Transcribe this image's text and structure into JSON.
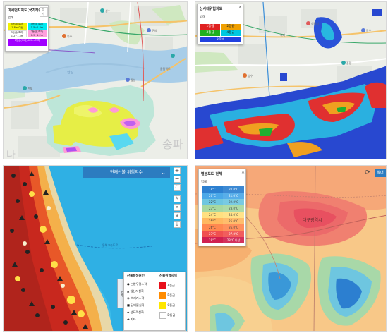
{
  "p1": {
    "title": "미세먼지지도(국가하천)",
    "btn": "접기",
    "sub": "범례",
    "cells": [
      {
        "t": "5등급(초과) 1.8m 이상",
        "c": "#f2f200"
      },
      {
        "t": "4등급(초과) 1.5~1.8m",
        "c": "#00e8f0"
      },
      {
        "t": "3등급(초과) 1.2~1.5m",
        "c": "#ffffff"
      },
      {
        "t": "2등급(초과) 0.9~1.2m",
        "c": "#ffa0dc"
      },
      {
        "t": "1등급(초과) 0.9m 이하",
        "c": "#a000ff"
      }
    ],
    "water_label": "한강",
    "big_label": "송파",
    "corner_label": "나"
  },
  "p2": {
    "title": "산사태위험지도",
    "sub": "범례",
    "cells": [
      {
        "t": "1등급",
        "c": "#e02020"
      },
      {
        "t": "2등급",
        "c": "#f0a000"
      },
      {
        "t": "3등급",
        "c": "#20b020"
      },
      {
        "t": "4등급",
        "c": "#00c8e0"
      },
      {
        "t": "5등급",
        "c": "#2040e0"
      }
    ]
  },
  "p3": {
    "header": "현재산불 위험지수",
    "side_tab": "범례",
    "causes_title": "산불발생원인",
    "levels_title": "산불위험지역",
    "causes": [
      "논밭두렁소각",
      "입산자실화",
      "쓰레기소각",
      "담배불실화",
      "성묘객실화",
      "기타"
    ],
    "levels": [
      {
        "t": "A등급",
        "c": "#e8101a"
      },
      {
        "t": "B등급",
        "c": "#ff8c00"
      },
      {
        "t": "C등급",
        "c": "#ffe600"
      },
      {
        "t": "D등급",
        "c": "#ffffff"
      }
    ],
    "road_label": "동해고속도로",
    "tools": [
      "+",
      "−",
      "⛶",
      "✎",
      "⌕",
      "⊕",
      "⤓"
    ]
  },
  "p4": {
    "title": "열분포도-전체",
    "sub": "범례",
    "btn": "확대",
    "cells": [
      {
        "l": "18°C",
        "r": "20.0°C",
        "c": "#2c7fd0"
      },
      {
        "l": "20°C",
        "r": "21.0°C",
        "c": "#4aa8e8"
      },
      {
        "l": "22°C",
        "r": "22.0°C",
        "c": "#6ec6e0"
      },
      {
        "l": "23°C",
        "r": "23.0°C",
        "c": "#a8d8a0"
      },
      {
        "l": "24°C",
        "r": "24.0°C",
        "c": "#ffe080"
      },
      {
        "l": "25°C",
        "r": "25.0°C",
        "c": "#ffb860"
      },
      {
        "l": "26°C",
        "r": "26.0°C",
        "c": "#ff8850"
      },
      {
        "l": "27°C",
        "r": "27.0°C",
        "c": "#f05050"
      },
      {
        "l": "28°C",
        "r": "28°C 이상",
        "c": "#d02050"
      }
    ],
    "city_label": "대구광역시"
  }
}
